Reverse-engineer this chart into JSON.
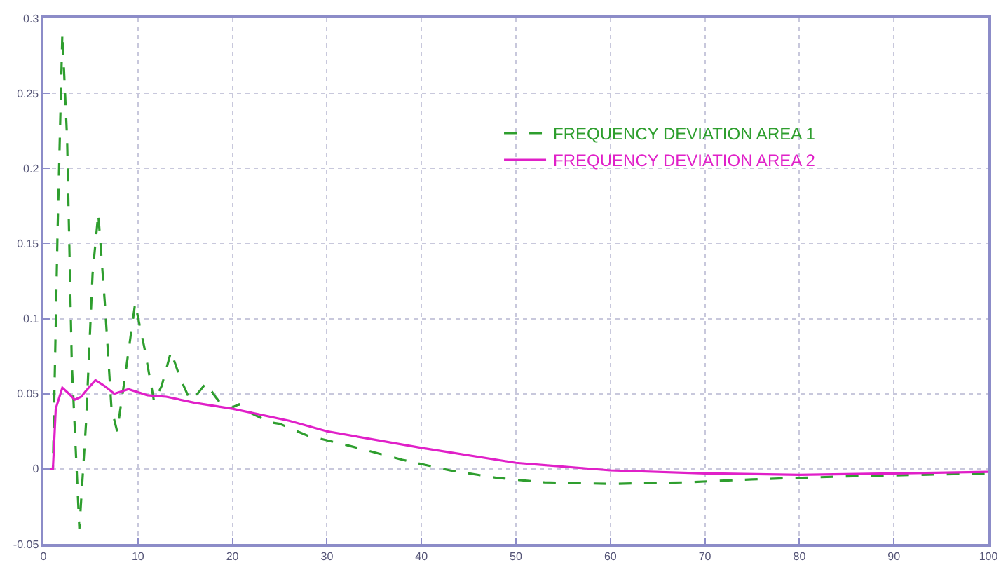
{
  "chart_data": {
    "type": "line",
    "xlim": [
      0,
      100
    ],
    "xticks": [
      0,
      10,
      20,
      30,
      40,
      50,
      60,
      70,
      80,
      90,
      100
    ],
    "ylim": [
      -0.05,
      0.3
    ],
    "yticks": [
      -0.05,
      0,
      0.05,
      0.1,
      0.15,
      0.2,
      0.25,
      0.3
    ],
    "grid": true,
    "legend": "top right",
    "series": [
      {
        "name": "FREQUENCY DEVIATION AREA 1",
        "color": "#2e9e2e",
        "line_style": "dashed",
        "x": [
          0,
          1,
          1.5,
          2,
          2.5,
          3,
          3.8,
          4.5,
          5.2,
          5.8,
          6.5,
          7.2,
          7.8,
          8.6,
          9.7,
          10.7,
          11.7,
          12.5,
          13.5,
          14.5,
          15.5,
          16.3,
          17.2,
          18.2,
          19.2,
          20,
          20.7,
          22,
          24,
          25,
          28,
          32,
          38,
          43,
          48,
          53,
          60,
          68,
          75,
          85,
          100
        ],
        "values": [
          0,
          0,
          0.16,
          0.29,
          0.22,
          0.07,
          -0.04,
          0.03,
          0.13,
          0.17,
          0.11,
          0.04,
          0.025,
          0.06,
          0.11,
          0.08,
          0.045,
          0.055,
          0.078,
          0.06,
          0.046,
          0.05,
          0.057,
          0.048,
          0.04,
          0.041,
          0.043,
          0.037,
          0.031,
          0.03,
          0.022,
          0.016,
          0.006,
          -0.001,
          -0.006,
          -0.009,
          -0.01,
          -0.009,
          -0.007,
          -0.005,
          -0.003
        ]
      },
      {
        "name": "FREQUENCY DEVIATION AREA 2",
        "color": "#e020c8",
        "line_style": "solid",
        "x": [
          0,
          1,
          1.3,
          2,
          2.7,
          3.3,
          4,
          4.5,
          5.5,
          6.5,
          7.5,
          9,
          11,
          13,
          16,
          20,
          26,
          30,
          40,
          50,
          60,
          70,
          80,
          90,
          100
        ],
        "values": [
          0,
          0,
          0.04,
          0.054,
          0.05,
          0.046,
          0.048,
          0.052,
          0.059,
          0.055,
          0.05,
          0.053,
          0.049,
          0.048,
          0.044,
          0.04,
          0.032,
          0.025,
          0.014,
          0.004,
          -0.001,
          -0.003,
          -0.004,
          -0.003,
          -0.002
        ]
      }
    ]
  }
}
